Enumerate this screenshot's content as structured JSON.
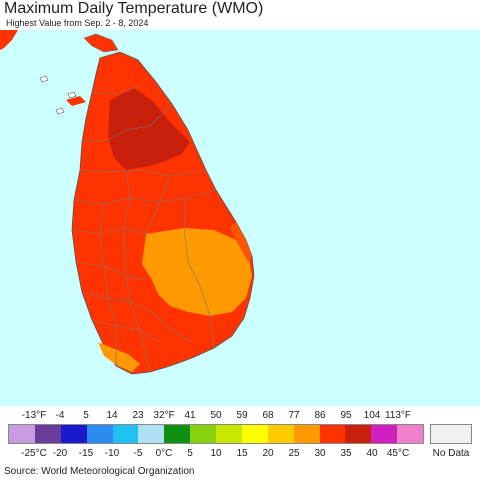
{
  "header": {
    "title": "Maximum Daily Temperature (WMO)",
    "subtitle": "Highest Value from Sep. 2 - 8, 2024"
  },
  "map": {
    "ocean_color": "#ccffff",
    "boundary_color": "#777777",
    "zones": [
      {
        "name": "island-body",
        "color": "#ff3300"
      },
      {
        "name": "northern-interior",
        "color": "#c8200a"
      },
      {
        "name": "eastern-lowland",
        "color": "#ff9900"
      },
      {
        "name": "southern-coast",
        "color": "#ff9900"
      },
      {
        "name": "coastal-edge",
        "color": "#ff5500"
      }
    ]
  },
  "legend": {
    "fahrenheit_labels": [
      "-13°F",
      "-4",
      "5",
      "14",
      "23",
      "32°F",
      "41",
      "50",
      "59",
      "68",
      "77",
      "86",
      "95",
      "104",
      "113°F"
    ],
    "celsius_labels": [
      "-25°C",
      "-20",
      "-15",
      "-10",
      "-5",
      "0°C",
      "5",
      "10",
      "15",
      "20",
      "25",
      "30",
      "35",
      "40",
      "45°C"
    ],
    "colors": [
      "#c89de0",
      "#6a3d9a",
      "#1a1acc",
      "#2a8cf0",
      "#20c0f0",
      "#b0e0f4",
      "#109010",
      "#88d010",
      "#c8e800",
      "#ffff00",
      "#ffcc00",
      "#ff9900",
      "#ff3300",
      "#c8200a",
      "#d020c0",
      "#ee80cc"
    ],
    "no_data_label": "No Data",
    "no_data_color": "#f0f0f0"
  },
  "footer": {
    "source": "Source: World Meteorological Organization"
  }
}
